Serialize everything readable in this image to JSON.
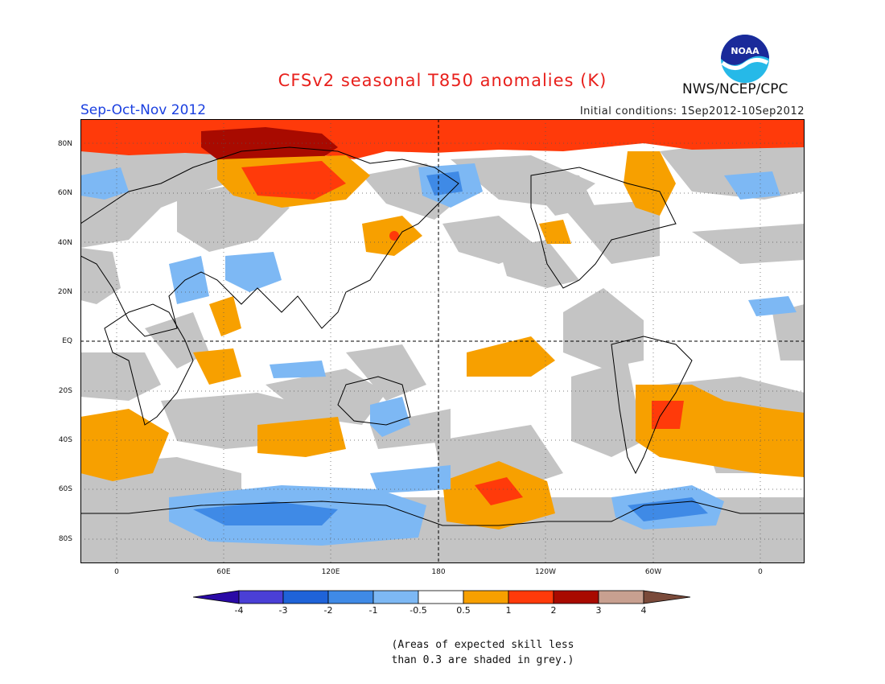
{
  "title": "CFSv2 seasonal T850 anomalies (K)",
  "season": "Sep-Oct-Nov 2012",
  "initial_conditions": "Initial conditions: 1Sep2012-10Sep2012",
  "agency": "NWS/NCEP/CPC",
  "logo_text": "NOAA",
  "latitude_labels": [
    "80N",
    "60N",
    "40N",
    "20N",
    "EQ",
    "20S",
    "40S",
    "60S",
    "80S"
  ],
  "longitude_labels": [
    "0",
    "60E",
    "120E",
    "180",
    "120W",
    "60W",
    "0"
  ],
  "colorbar": {
    "labels": [
      "-4",
      "-3",
      "-2",
      "-1",
      "-0.5",
      "0.5",
      "1",
      "2",
      "3",
      "4"
    ],
    "colors": [
      "#2a0aa6",
      "#4a3fd6",
      "#1f63d8",
      "#3f8ae6",
      "#7db8f4",
      "#ffffff",
      "#f7a000",
      "#ff3a0a",
      "#a80a00",
      "#c8a090",
      "#7a4a3a"
    ]
  },
  "skill_note_line1": "(Areas of expected skill less",
  "skill_note_line2": "than 0.3 are shaded in grey.)",
  "colors": {
    "grey_low_skill": "#c4c4c4",
    "land_outline": "#000000",
    "title": "#e8201c",
    "season": "#1a3fe0"
  }
}
